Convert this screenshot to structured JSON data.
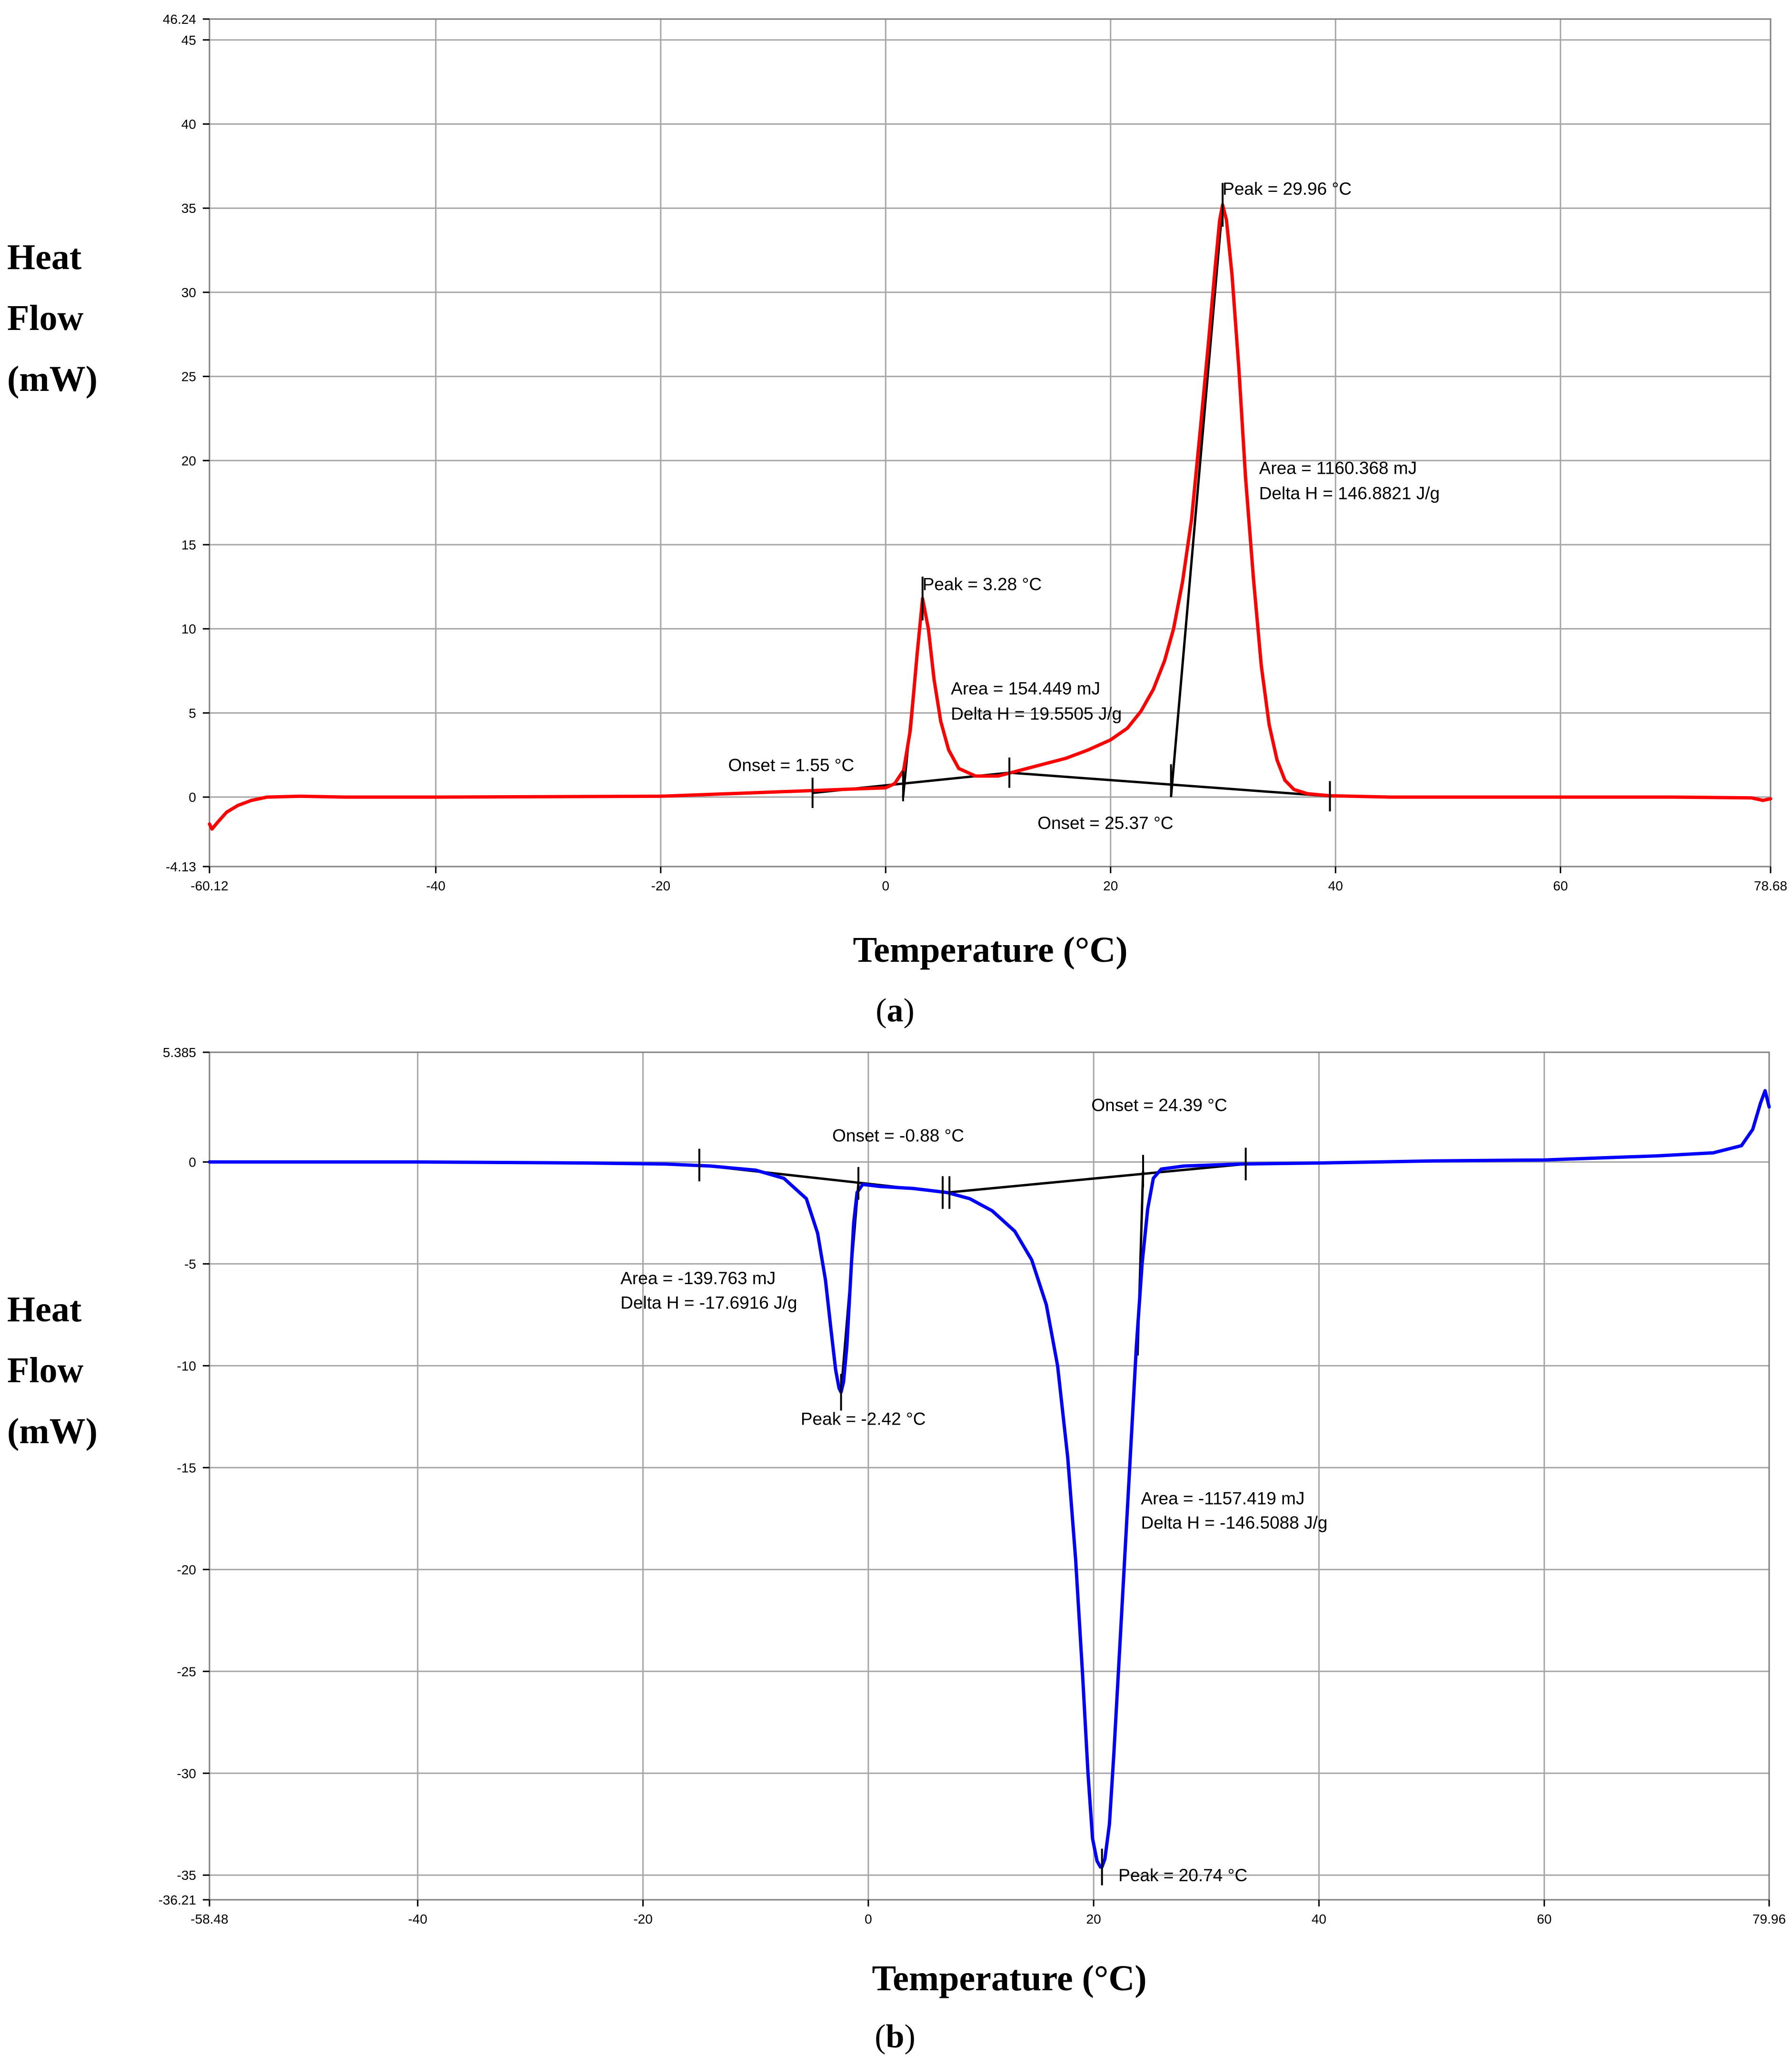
{
  "chart_data": [
    {
      "panel": "a",
      "type": "line",
      "xlabel": "Temperature (°C)",
      "ylabel": [
        "Heat",
        "Flow",
        "(mW)"
      ],
      "xlim": [
        -60.12,
        78.68
      ],
      "ylim": [
        -4.13,
        46.24
      ],
      "x_ticks": [
        {
          "value": -60.12,
          "label": "-60.12"
        },
        {
          "value": -40,
          "label": "-40"
        },
        {
          "value": -20,
          "label": "-20"
        },
        {
          "value": 0,
          "label": "0"
        },
        {
          "value": 20,
          "label": "20"
        },
        {
          "value": 40,
          "label": "40"
        },
        {
          "value": 60,
          "label": "60"
        },
        {
          "value": 78.68,
          "label": "78.68"
        }
      ],
      "y_ticks": [
        {
          "value": 46.24,
          "label": "46.24"
        },
        {
          "value": 45,
          "label": "45"
        },
        {
          "value": 40,
          "label": "40"
        },
        {
          "value": 35,
          "label": "35"
        },
        {
          "value": 30,
          "label": "30"
        },
        {
          "value": 25,
          "label": "25"
        },
        {
          "value": 20,
          "label": "20"
        },
        {
          "value": 15,
          "label": "15"
        },
        {
          "value": 10,
          "label": "10"
        },
        {
          "value": 5,
          "label": "5"
        },
        {
          "value": 0,
          "label": "0"
        },
        {
          "value": -4.13,
          "label": "-4.13"
        }
      ],
      "grid": true,
      "series": [
        {
          "color": "#ff0000",
          "x": [
            -60.12,
            -59.9,
            -59.4,
            -58.6,
            -57.6,
            -56.4,
            -55,
            -52,
            -48,
            -40,
            -20,
            0,
            0.8,
            1.6,
            2.2,
            2.8,
            3.28,
            3.8,
            4.3,
            4.9,
            5.6,
            6.5,
            8,
            10,
            12,
            14,
            16,
            18,
            20,
            21.5,
            22.7,
            23.8,
            24.8,
            25.6,
            26.4,
            27.2,
            28,
            28.7,
            29.3,
            29.7,
            29.96,
            30.3,
            30.8,
            31.4,
            32,
            32.7,
            33.4,
            34.1,
            34.8,
            35.5,
            36.3,
            37.5,
            39.5,
            45,
            60,
            70,
            77,
            78,
            78.68
          ],
          "y": [
            -1.6,
            -1.9,
            -1.5,
            -0.9,
            -0.5,
            -0.2,
            0,
            0.05,
            0,
            0,
            0.05,
            0.55,
            0.8,
            1.6,
            4,
            8.5,
            11.8,
            10,
            7,
            4.5,
            2.8,
            1.7,
            1.25,
            1.25,
            1.6,
            1.95,
            2.3,
            2.8,
            3.4,
            4.1,
            5.1,
            6.4,
            8.1,
            10,
            12.8,
            16.5,
            22,
            27,
            31.5,
            34.3,
            35.2,
            34.3,
            31,
            25.5,
            19,
            13,
            7.8,
            4.3,
            2.2,
            1,
            0.45,
            0.2,
            0.08,
            0,
            0,
            0,
            -0.05,
            -0.2,
            -0.1
          ]
        }
      ],
      "baselines": [
        {
          "x": [
            -6.5,
            11
          ],
          "y": [
            0.25,
            1.45
          ]
        },
        {
          "x": [
            11,
            39.5
          ],
          "y": [
            1.45,
            0.05
          ]
        }
      ],
      "tangents": [
        {
          "x": [
            1.55,
            3.28
          ],
          "y": [
            0,
            11.8
          ]
        },
        {
          "x": [
            25.37,
            29.96
          ],
          "y": [
            0,
            35.2
          ]
        }
      ],
      "markers": [
        {
          "x": -6.5,
          "y": 0.25,
          "dy": 0.9
        },
        {
          "x": 1.55,
          "y": 0.65,
          "dy": 0.9
        },
        {
          "x": 11,
          "y": 1.45,
          "dy": 0.9
        },
        {
          "x": 25.37,
          "y": 1.05,
          "dy": 0.9
        },
        {
          "x": 39.5,
          "y": 0.05,
          "dy": 0.9
        },
        {
          "x": 3.28,
          "y": 11.8,
          "dy": 1.3
        },
        {
          "x": 29.96,
          "y": 35.2,
          "dy": 1.3
        }
      ],
      "annotations": [
        {
          "x": 3.28,
          "y": 12.3,
          "anchor": "start",
          "text": "Peak = 3.28 °C"
        },
        {
          "x": 29.96,
          "y": 35.8,
          "anchor": "start",
          "text": "Peak = 29.96 °C"
        },
        {
          "x": 5.8,
          "y": 6.1,
          "anchor": "start",
          "text": "Area = 154.449 mJ"
        },
        {
          "x": 5.8,
          "y": 4.6,
          "anchor": "start",
          "text": "Delta H = 19.5505 J/g"
        },
        {
          "x": 33.2,
          "y": 19.2,
          "anchor": "start",
          "text": "Area = 1160.368 mJ"
        },
        {
          "x": 33.2,
          "y": 17.7,
          "anchor": "start",
          "text": "Delta H = 146.8821 J/g"
        },
        {
          "x": -14,
          "y": 1.55,
          "anchor": "start",
          "text": "Onset = 1.55 °C"
        },
        {
          "x": 13.5,
          "y": -1.9,
          "anchor": "start",
          "text": "Onset = 25.37 °C"
        }
      ],
      "panel_label": {
        "open": "(",
        "letter": "a",
        "close": ")"
      }
    },
    {
      "panel": "b",
      "type": "line",
      "xlabel": "Temperature (°C)",
      "ylabel": [
        "Heat",
        "Flow",
        "(mW)"
      ],
      "xlim": [
        -58.48,
        79.96
      ],
      "ylim": [
        -36.21,
        5.385
      ],
      "x_ticks": [
        {
          "value": -58.48,
          "label": "-58.48"
        },
        {
          "value": -40,
          "label": "-40"
        },
        {
          "value": -20,
          "label": "-20"
        },
        {
          "value": 0,
          "label": "0"
        },
        {
          "value": 20,
          "label": "20"
        },
        {
          "value": 40,
          "label": "40"
        },
        {
          "value": 60,
          "label": "60"
        },
        {
          "value": 79.96,
          "label": "79.96"
        }
      ],
      "y_ticks": [
        {
          "value": 5.385,
          "label": "5.385"
        },
        {
          "value": 0,
          "label": "0"
        },
        {
          "value": -5,
          "label": "-5"
        },
        {
          "value": -10,
          "label": "-10"
        },
        {
          "value": -15,
          "label": "-15"
        },
        {
          "value": -20,
          "label": "-20"
        },
        {
          "value": -25,
          "label": "-25"
        },
        {
          "value": -30,
          "label": "-30"
        },
        {
          "value": -35,
          "label": "-35"
        },
        {
          "value": -36.21,
          "label": "-36.21"
        }
      ],
      "grid": true,
      "series": [
        {
          "color": "#0000ff",
          "x": [
            -58.48,
            -40,
            -25,
            -18,
            -14,
            -10,
            -7.5,
            -5.5,
            -4.5,
            -3.8,
            -3.3,
            -2.9,
            -2.6,
            -2.42,
            -2.2,
            -1.9,
            -1.6,
            -1.3,
            -1,
            -0.5,
            1,
            4,
            7,
            9,
            11,
            13,
            14.5,
            15.8,
            16.8,
            17.7,
            18.4,
            19,
            19.5,
            19.9,
            20.3,
            20.6,
            20.74,
            21,
            21.4,
            21.8,
            22.3,
            22.8,
            23.3,
            23.8,
            24.3,
            24.8,
            25.3,
            26,
            28,
            33,
            40,
            50,
            60,
            70,
            75,
            77.5,
            78.5,
            79.2,
            79.6,
            79.96
          ],
          "y": [
            0,
            0,
            -0.05,
            -0.1,
            -0.2,
            -0.4,
            -0.8,
            -1.8,
            -3.5,
            -5.8,
            -8.3,
            -10.2,
            -11.1,
            -11.3,
            -10.8,
            -9,
            -6,
            -3,
            -1.5,
            -1.1,
            -1.2,
            -1.3,
            -1.5,
            -1.8,
            -2.4,
            -3.4,
            -4.8,
            -7,
            -10,
            -14.5,
            -19.5,
            -25,
            -30,
            -33.2,
            -34.3,
            -34.6,
            -34.6,
            -34.2,
            -32.5,
            -29,
            -24,
            -19,
            -14,
            -9,
            -5,
            -2.3,
            -0.8,
            -0.35,
            -0.2,
            -0.1,
            -0.05,
            0.05,
            0.1,
            0.3,
            0.45,
            0.8,
            1.6,
            2.9,
            3.5,
            2.7
          ]
        }
      ],
      "baselines": [
        {
          "x": [
            -15,
            7
          ],
          "y": [
            -0.15,
            -1.5
          ]
        },
        {
          "x": [
            7,
            33.5
          ],
          "y": [
            -1.5,
            -0.1
          ]
        }
      ],
      "tangents": [
        {
          "x": [
            -0.88,
            -2.42
          ],
          "y": [
            -1.05,
            -11.3
          ]
        },
        {
          "x": [
            24.39,
            23.9
          ],
          "y": [
            -0.45,
            -9.5
          ]
        }
      ],
      "markers": [
        {
          "x": -15,
          "y": -0.15,
          "dy": 0.8
        },
        {
          "x": -0.88,
          "y": -1.05,
          "dy": 0.8
        },
        {
          "x": 6.6,
          "y": -1.5,
          "dy": 0.8
        },
        {
          "x": 7.2,
          "y": -1.5,
          "dy": 0.8
        },
        {
          "x": 24.39,
          "y": -0.45,
          "dy": 0.8
        },
        {
          "x": 33.5,
          "y": -0.1,
          "dy": 0.8
        },
        {
          "x": -2.42,
          "y": -11.3,
          "dy": 0.9
        },
        {
          "x": 20.74,
          "y": -34.6,
          "dy": 0.9
        }
      ],
      "annotations": [
        {
          "x": -3.2,
          "y": 1,
          "anchor": "start",
          "text": "Onset = -0.88 °C"
        },
        {
          "x": 19.8,
          "y": 2.5,
          "anchor": "start",
          "text": "Onset = 24.39 °C"
        },
        {
          "x": -22,
          "y": -6,
          "anchor": "start",
          "text": "Area = -139.763 mJ"
        },
        {
          "x": -22,
          "y": -7.2,
          "anchor": "start",
          "text": "Delta H = -17.6916 J/g"
        },
        {
          "x": -6,
          "y": -12.9,
          "anchor": "start",
          "text": "Peak = -2.42 °C"
        },
        {
          "x": 24.2,
          "y": -16.8,
          "anchor": "start",
          "text": "Area = -1157.419 mJ"
        },
        {
          "x": 24.2,
          "y": -18,
          "anchor": "start",
          "text": "Delta H = -146.5088 J/g"
        },
        {
          "x": 22.2,
          "y": -35.3,
          "anchor": "start",
          "text": "Peak = 20.74 °C"
        }
      ],
      "panel_label": {
        "open": "(",
        "letter": "b",
        "close": ")"
      }
    }
  ]
}
